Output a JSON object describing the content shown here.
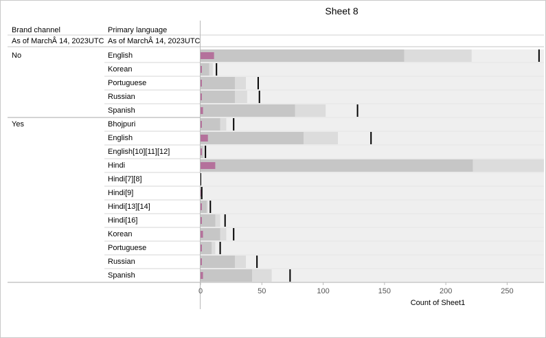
{
  "title": "Sheet 8",
  "columns": {
    "brand": "Brand channel",
    "language": "Primary language",
    "as_of_brand": "As of MarchÂ 14, 2023UTC",
    "as_of_language": "As of MarchÂ 14, 2023UTC"
  },
  "colors": {
    "band_outer": "#efefef",
    "band_mid": "#dcdcdc",
    "band_inner": "#c6c6c6",
    "bar": "#b4719b",
    "reference_line": "#000000"
  },
  "chart_data": {
    "type": "bar",
    "orientation": "horizontal",
    "title": "Sheet 8",
    "xlabel": "Count of Sheet1",
    "xlim": [
      0,
      280
    ],
    "ticks": [
      0,
      50,
      100,
      150,
      200,
      250
    ],
    "groups": [
      {
        "name": "No",
        "rows": [
          {
            "label": "English",
            "value": 11,
            "band_inner": 166,
            "band_mid": 221,
            "band_outer": 280,
            "reference": 276
          },
          {
            "label": "Korean",
            "value": 1,
            "band_inner": 7,
            "band_mid": 10,
            "band_outer": 280,
            "reference": 13
          },
          {
            "label": "Portuguese",
            "value": 1,
            "band_inner": 28,
            "band_mid": 37,
            "band_outer": 280,
            "reference": 47
          },
          {
            "label": "Russian",
            "value": 1,
            "band_inner": 28,
            "band_mid": 38,
            "band_outer": 280,
            "reference": 48
          },
          {
            "label": "Spanish",
            "value": 2,
            "band_inner": 77,
            "band_mid": 102,
            "band_outer": 280,
            "reference": 128
          }
        ]
      },
      {
        "name": "Yes",
        "rows": [
          {
            "label": "Bhojpuri",
            "value": 1,
            "band_inner": 16,
            "band_mid": 21,
            "band_outer": 280,
            "reference": 27
          },
          {
            "label": "English",
            "value": 6,
            "band_inner": 84,
            "band_mid": 112,
            "band_outer": 280,
            "reference": 139
          },
          {
            "label": "English[10][11][12]",
            "value": 1,
            "band_inner": 2,
            "band_mid": 3,
            "band_outer": 280,
            "reference": 4
          },
          {
            "label": "Hindi",
            "value": 12,
            "band_inner": 222,
            "band_mid": 280,
            "band_outer": 280,
            "reference": null
          },
          {
            "label": "Hindi[7][8]",
            "value": 0,
            "band_inner": 0,
            "band_mid": 0,
            "band_outer": 280,
            "reference": 0
          },
          {
            "label": "Hindi[9]",
            "value": 1,
            "band_inner": 1,
            "band_mid": 1,
            "band_outer": 280,
            "reference": 1
          },
          {
            "label": "Hindi[13][14]",
            "value": 1,
            "band_inner": 5,
            "band_mid": 6,
            "band_outer": 280,
            "reference": 8
          },
          {
            "label": "Hindi[16]",
            "value": 1,
            "band_inner": 12,
            "band_mid": 16,
            "band_outer": 280,
            "reference": 20
          },
          {
            "label": "Korean",
            "value": 2,
            "band_inner": 16,
            "band_mid": 21,
            "band_outer": 280,
            "reference": 27
          },
          {
            "label": "Portuguese",
            "value": 1,
            "band_inner": 9,
            "band_mid": 12,
            "band_outer": 280,
            "reference": 16
          },
          {
            "label": "Russian",
            "value": 1,
            "band_inner": 28,
            "band_mid": 37,
            "band_outer": 280,
            "reference": 46
          },
          {
            "label": "Spanish",
            "value": 2,
            "band_inner": 42,
            "band_mid": 58,
            "band_outer": 280,
            "reference": 73
          }
        ]
      }
    ]
  }
}
